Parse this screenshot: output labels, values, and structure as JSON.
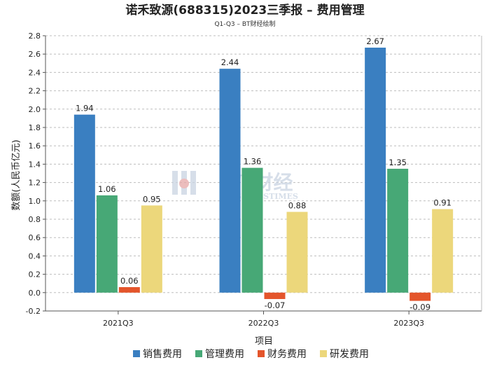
{
  "chart_data": {
    "type": "bar",
    "title": "诺禾致源(688315)2023三季报 – 费用管理",
    "subtitle": "Q1-Q3 – BT财经绘制",
    "xlabel": "项目",
    "ylabel": "数额(人民币亿元)",
    "categories": [
      "2021Q3",
      "2022Q3",
      "2023Q3"
    ],
    "ylim": [
      -0.2,
      2.8
    ],
    "yticks": [
      -0.2,
      0.0,
      0.2,
      0.4,
      0.6,
      0.8,
      1.0,
      1.2,
      1.4,
      1.6,
      1.8,
      2.0,
      2.2,
      2.4,
      2.6,
      2.8
    ],
    "grid": true,
    "legend_position": "bottom",
    "series": [
      {
        "name": "销售费用",
        "color": "#3a7fc1",
        "values": [
          1.94,
          2.44,
          2.67
        ],
        "labels": [
          "1.94",
          "2.44",
          "2.67"
        ]
      },
      {
        "name": "管理费用",
        "color": "#47a876",
        "values": [
          1.06,
          1.36,
          1.35
        ],
        "labels": [
          "1.06",
          "1.36",
          "1.35"
        ]
      },
      {
        "name": "财务费用",
        "color": "#e4552b",
        "values": [
          0.06,
          -0.07,
          -0.09
        ],
        "labels": [
          "0.06",
          "-0.07",
          "-0.09"
        ]
      },
      {
        "name": "研发费用",
        "color": "#ecd77b",
        "values": [
          0.95,
          0.88,
          0.91
        ],
        "labels": [
          "0.95",
          "0.88",
          "0.91"
        ]
      }
    ]
  },
  "watermark": {
    "main": "BT财经",
    "sub": "BUSINESSTIMES"
  }
}
